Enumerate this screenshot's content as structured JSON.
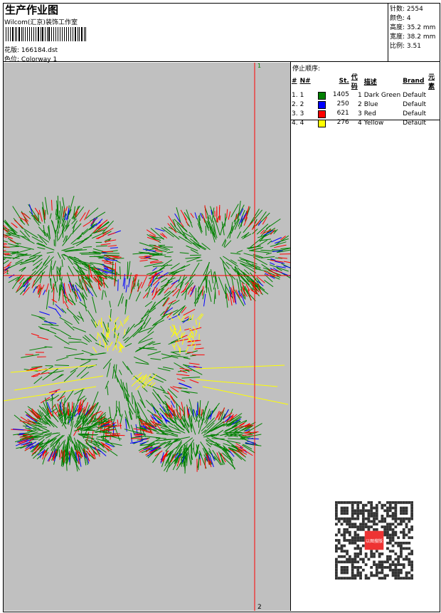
{
  "header": {
    "title": "生产作业图",
    "company": "Wilcom(汇京)装饰工作室",
    "design_label": "花版:",
    "design_value": "166184.dst",
    "colorway_label": "色位:",
    "colorway_value": "Colorway 1"
  },
  "stats": [
    {
      "label": "针数:",
      "value": "2554"
    },
    {
      "label": "颜色:",
      "value": "4"
    },
    {
      "label": "高度:",
      "value": "35.2 mm"
    },
    {
      "label": "宽度:",
      "value": "38.2 mm"
    },
    {
      "label": "比例:",
      "value": "3.51"
    }
  ],
  "stop_sequence": {
    "title": "停止顺序:",
    "columns": [
      "#",
      "N#",
      "St.",
      "代码",
      "描述",
      "Brand",
      "元素"
    ],
    "rows": [
      {
        "idx": "1.",
        "n": "1",
        "color": "#008000",
        "st": "1405",
        "code": "1",
        "desc": "Dark Green",
        "brand": "Default"
      },
      {
        "idx": "2.",
        "n": "2",
        "color": "#0000ff",
        "st": "250",
        "code": "2",
        "desc": "Blue",
        "brand": "Default"
      },
      {
        "idx": "3.",
        "n": "3",
        "color": "#ff0000",
        "st": "621",
        "code": "3",
        "desc": "Red",
        "brand": "Default"
      },
      {
        "idx": "4.",
        "n": "4",
        "color": "#ffff00",
        "st": "276",
        "code": "4",
        "desc": "Yellow",
        "brand": "Default"
      }
    ]
  },
  "canvas": {
    "marker_1_top": "1",
    "marker_1_left": "1",
    "marker_2_bottom": "2",
    "guide_color": "#ff0000"
  },
  "qr": {
    "logo_text": "以图搜版"
  }
}
